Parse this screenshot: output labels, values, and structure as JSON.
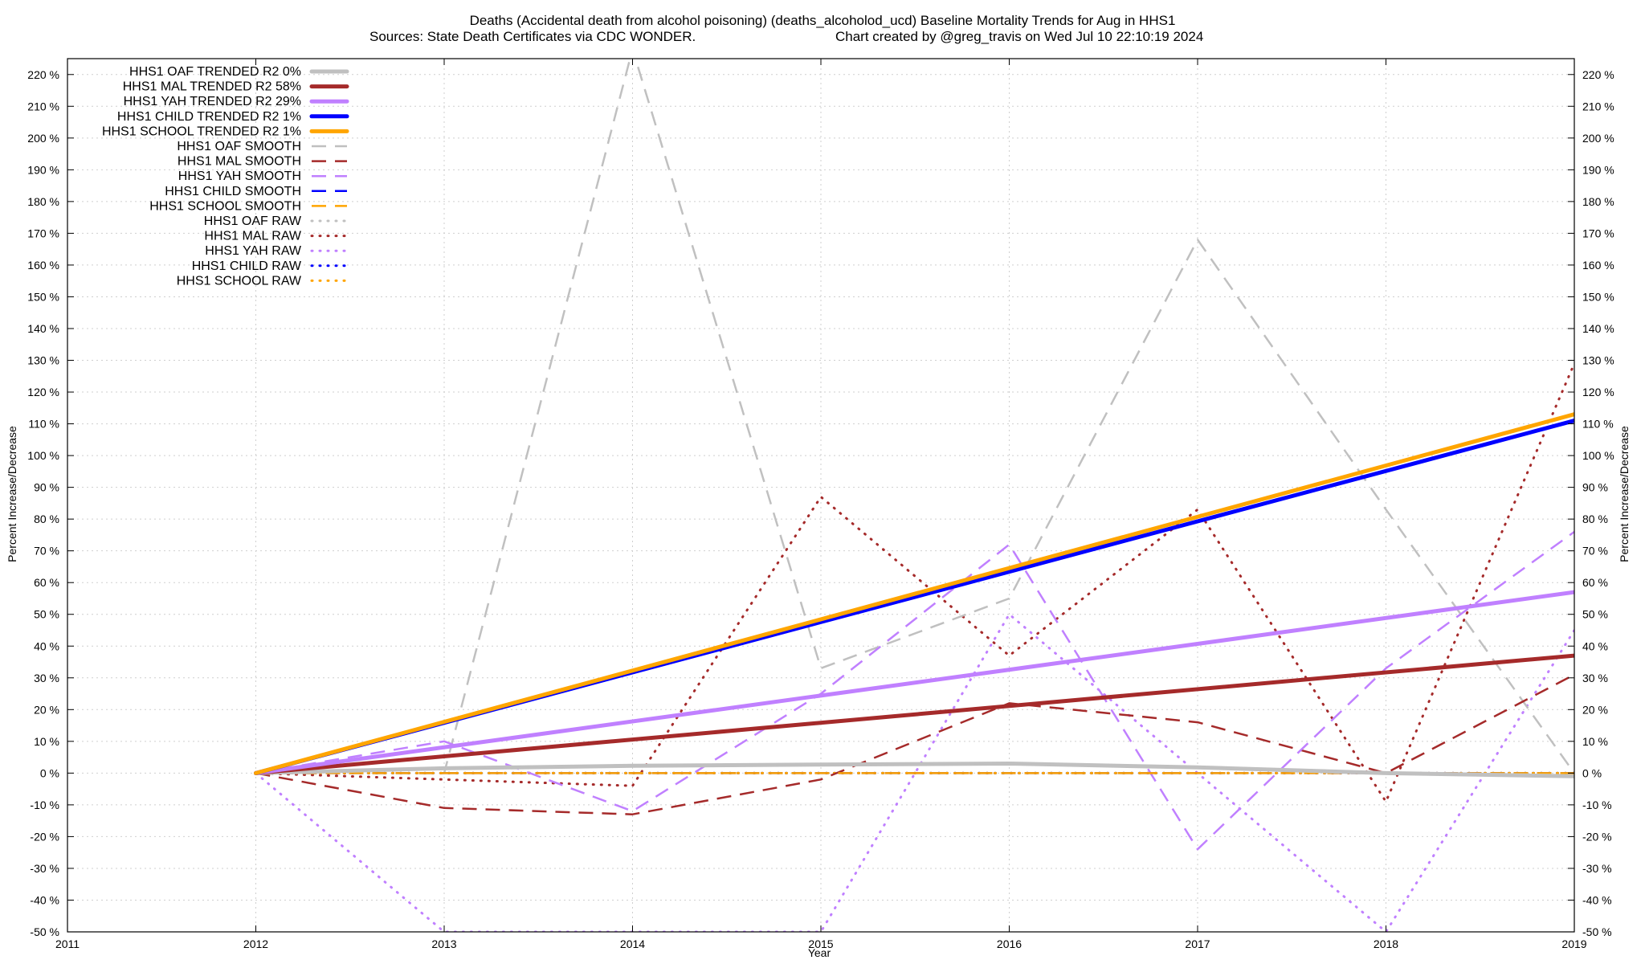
{
  "chart_data": {
    "type": "line",
    "title_line1": "Deaths (Accidental death from alcohol poisoning) (deaths_alcoholod_ucd)  Baseline Mortality Trends for Aug in HHS1",
    "title_line2_left": "Sources: State Death Certificates via CDC WONDER.",
    "title_line2_right": "Chart created by @greg_travis on Wed Jul 10 22:10:19 2024",
    "xlabel": "Year",
    "ylabel": "Percent Increase/Decrease",
    "ylabel_right": "Percent Increase/Decrease",
    "xlim": [
      2011,
      2019
    ],
    "ylim": [
      -50,
      225
    ],
    "x_ticks": [
      2011,
      2012,
      2013,
      2014,
      2015,
      2016,
      2017,
      2018,
      2019
    ],
    "y_ticks": [
      -50,
      -40,
      -30,
      -20,
      -10,
      0,
      10,
      20,
      30,
      40,
      50,
      60,
      70,
      80,
      90,
      100,
      110,
      120,
      130,
      140,
      150,
      160,
      170,
      180,
      190,
      200,
      210,
      220
    ],
    "y_tick_suffix": " %",
    "grid": true,
    "legend_position": "top-left",
    "series": [
      {
        "name": "HHS1 OAF TRENDED R2",
        "r2": "0%",
        "style": "solid",
        "color": "#c0c0c0",
        "x": [
          2012,
          2013,
          2014,
          2015,
          2016,
          2017,
          2018,
          2019
        ],
        "y": [
          0,
          1.5,
          2.3,
          2.7,
          3.0,
          1.8,
          0,
          -1.0
        ]
      },
      {
        "name": "HHS1 MAL TRENDED R2",
        "r2": "58%",
        "style": "solid",
        "color": "#a52a2a",
        "x": [
          2012,
          2019
        ],
        "y": [
          0,
          37
        ]
      },
      {
        "name": "HHS1 YAH TRENDED R2",
        "r2": "29%",
        "style": "solid",
        "color": "#c080ff",
        "x": [
          2012,
          2019
        ],
        "y": [
          0,
          57
        ]
      },
      {
        "name": "HHS1 CHILD TRENDED R2",
        "r2": "1%",
        "style": "solid",
        "color": "#0000ff",
        "x": [
          2012,
          2019
        ],
        "y": [
          0,
          111
        ]
      },
      {
        "name": "HHS1 SCHOOL TRENDED R2",
        "r2": "1%",
        "style": "solid",
        "color": "#ffa500",
        "x": [
          2012,
          2019
        ],
        "y": [
          0,
          113
        ]
      },
      {
        "name": "HHS1 OAF SMOOTH",
        "r2": "",
        "style": "dashed",
        "color": "#c0c0c0",
        "x": [
          2012,
          2013,
          2014,
          2015,
          2016,
          2017,
          2018,
          2019
        ],
        "y": [
          0,
          0,
          228,
          33,
          55,
          168,
          83,
          0
        ]
      },
      {
        "name": "HHS1 MAL SMOOTH",
        "r2": "",
        "style": "dashed",
        "color": "#a52a2a",
        "x": [
          2012,
          2013,
          2014,
          2015,
          2016,
          2017,
          2018,
          2019
        ],
        "y": [
          0,
          -11,
          -13,
          -2,
          22,
          16,
          0,
          31
        ]
      },
      {
        "name": "HHS1 YAH SMOOTH",
        "r2": "",
        "style": "dashed",
        "color": "#c080ff",
        "x": [
          2012,
          2013,
          2014,
          2015,
          2016,
          2017,
          2018,
          2019
        ],
        "y": [
          0,
          10,
          -12,
          25,
          72,
          -24,
          33,
          76
        ]
      },
      {
        "name": "HHS1 CHILD SMOOTH",
        "r2": "",
        "style": "dashed",
        "color": "#0000ff",
        "x": [
          2012,
          2019
        ],
        "y": [
          0,
          0
        ]
      },
      {
        "name": "HHS1 SCHOOL SMOOTH",
        "r2": "",
        "style": "dashed",
        "color": "#ffa500",
        "x": [
          2012,
          2019
        ],
        "y": [
          0,
          0
        ]
      },
      {
        "name": "HHS1 OAF RAW",
        "r2": "",
        "style": "dotted",
        "color": "#c0c0c0",
        "x": [
          2012,
          2019
        ],
        "y": [
          0,
          0
        ]
      },
      {
        "name": "HHS1 MAL RAW",
        "r2": "",
        "style": "dotted",
        "color": "#a52a2a",
        "x": [
          2012,
          2013,
          2014,
          2015,
          2016,
          2017,
          2018,
          2019
        ],
        "y": [
          0,
          -2,
          -4,
          87,
          37,
          83,
          -9,
          129
        ]
      },
      {
        "name": "HHS1 YAH RAW",
        "r2": "",
        "style": "dotted",
        "color": "#c080ff",
        "x": [
          2012,
          2013,
          2014,
          2015,
          2016,
          2017,
          2018,
          2019
        ],
        "y": [
          0,
          -50,
          -50,
          -50,
          50,
          0,
          -50,
          45
        ]
      },
      {
        "name": "HHS1 CHILD RAW",
        "r2": "",
        "style": "dotted",
        "color": "#0000ff",
        "x": [
          2012,
          2019
        ],
        "y": [
          0,
          0
        ]
      },
      {
        "name": "HHS1 SCHOOL RAW",
        "r2": "",
        "style": "dotted",
        "color": "#ffa500",
        "x": [
          2012,
          2019
        ],
        "y": [
          0,
          0
        ]
      }
    ]
  }
}
